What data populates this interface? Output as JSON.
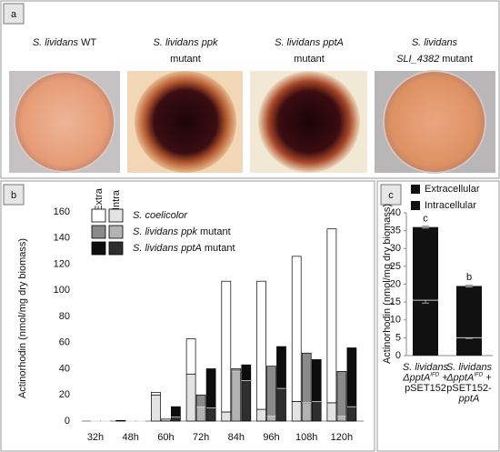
{
  "panel_labels": [
    "a",
    "b",
    "c"
  ],
  "panel_a": {
    "captions": [
      {
        "lines": [
          [
            {
              "text": "S. lividans",
              "italic": true
            },
            {
              "text": " WT",
              "italic": false
            }
          ]
        ]
      },
      {
        "lines": [
          [
            {
              "text": "S. lividans  ppk",
              "italic": true
            }
          ],
          [
            {
              "text": "mutant",
              "italic": false
            }
          ]
        ]
      },
      {
        "lines": [
          [
            {
              "text": "S. lividans pptA",
              "italic": true
            }
          ],
          [
            {
              "text": "mutant",
              "italic": false
            }
          ]
        ]
      },
      {
        "lines": [
          [
            {
              "text": "S. lividans",
              "italic": true
            }
          ],
          [
            {
              "text": "SLI_4382",
              "italic": true
            },
            {
              "text": " mutant",
              "italic": false
            }
          ]
        ]
      }
    ]
  },
  "chart_data": [
    {
      "type": "grouped_stacked_bar",
      "ylabel": "Actinorhodin (nmol/mg dry biomass)",
      "categories": [
        "32h",
        "48h",
        "60h",
        "72h",
        "84h",
        "96h",
        "108h",
        "120h"
      ],
      "ylim": [
        0,
        160
      ],
      "yticks": [
        0,
        20,
        40,
        60,
        80,
        100,
        120,
        140,
        160
      ],
      "legend_columns": [
        "Extra",
        "Intra"
      ],
      "series": [
        {
          "name": [
            {
              "text": "S. coelicolor",
              "italic": true
            }
          ],
          "extra_color": "#ffffff",
          "intra_color": "#e3e3e3",
          "intra": [
            0,
            0,
            20,
            36,
            7,
            9,
            15,
            14
          ],
          "extra": [
            0,
            0.5,
            2,
            27,
            100,
            98,
            111,
            133
          ]
        },
        {
          "name": [
            {
              "text": "S. lividans ppk",
              "italic": true
            },
            {
              "text": " mutant",
              "italic": false
            }
          ],
          "extra_color": "#8a8a8a",
          "intra_color": "#b3b3b3",
          "intra": [
            0,
            0,
            1,
            11,
            38,
            4,
            14,
            4
          ],
          "extra": [
            0,
            0,
            0.5,
            9,
            2,
            38,
            38,
            34
          ]
        },
        {
          "name": [
            {
              "text": "S. lividans pptA",
              "italic": true
            },
            {
              "text": " mutant",
              "italic": false
            }
          ],
          "extra_color": "#0d0d0d",
          "intra_color": "#2e2e2e",
          "intra": [
            0,
            0,
            3,
            10,
            31,
            25,
            15,
            11
          ],
          "extra": [
            0,
            0,
            8,
            30,
            12,
            32,
            32,
            45
          ]
        }
      ]
    },
    {
      "type": "stacked_bar",
      "ylabel": "Actinorhodin (nmol/mg dry biomass)",
      "categories": [
        [
          [
            {
              "text": "S. lividans",
              "italic": true,
              "sup": false
            }
          ],
          [
            {
              "text": "ΔpptA",
              "italic": true,
              "sup": false
            },
            {
              "text": "IFD",
              "italic": true,
              "sup": true
            },
            {
              "text": " +",
              "italic": false,
              "sup": false
            }
          ],
          [
            {
              "text": "pSET152",
              "italic": false,
              "sup": false
            }
          ]
        ],
        [
          [
            {
              "text": "S. lividans",
              "italic": true,
              "sup": false
            }
          ],
          [
            {
              "text": "ΔpptA",
              "italic": true,
              "sup": false
            },
            {
              "text": "IFD",
              "italic": true,
              "sup": true
            },
            {
              "text": " +",
              "italic": false,
              "sup": false
            }
          ],
          [
            {
              "text": "pSET152-",
              "italic": false,
              "sup": false
            }
          ],
          [
            {
              "text": "pptA",
              "italic": true,
              "sup": false
            }
          ]
        ]
      ],
      "ylim": [
        0,
        40
      ],
      "yticks": [
        0,
        5,
        10,
        15,
        20,
        25,
        30,
        35,
        40
      ],
      "series": [
        {
          "name": "Extracellular",
          "color": "#111111",
          "values": [
            20.5,
            14.5
          ],
          "errors": [
            0.3,
            0.3
          ],
          "letters": [
            "c",
            "b"
          ]
        },
        {
          "name": "Intracellular",
          "color": "#111111",
          "values": [
            15.5,
            5
          ],
          "errors": [
            0.8,
            0.2
          ],
          "letters": [
            "b",
            "a"
          ]
        }
      ]
    }
  ]
}
